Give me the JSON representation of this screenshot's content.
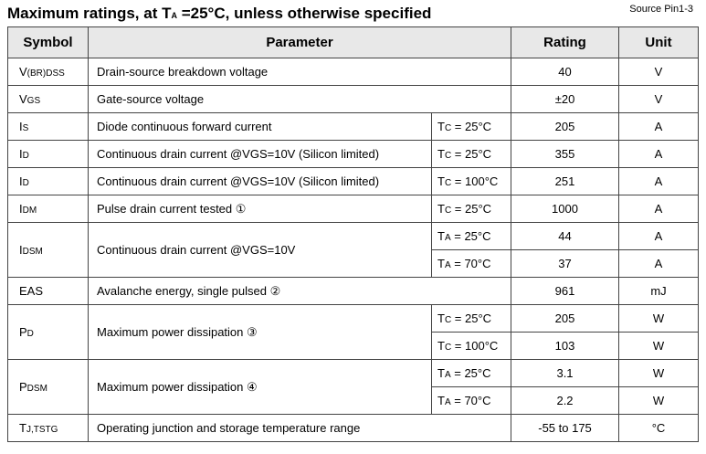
{
  "header": {
    "title_prefix": "Maximum ratings, at T",
    "title_sub": "A",
    "title_suffix": " =25°C, unless otherwise specified",
    "source": "Source Pin1-3"
  },
  "columns": {
    "symbol": "Symbol",
    "parameter": "Parameter",
    "rating": "Rating",
    "unit": "Unit"
  },
  "rows": [
    {
      "sym_main": "V",
      "sym_sub": "(BR)DSS",
      "param": "Drain-source breakdown voltage",
      "rating": "40",
      "unit": "V"
    },
    {
      "sym_main": "V",
      "sym_sub": "GS",
      "param": "Gate-source voltage",
      "rating": "±20",
      "unit": "V"
    },
    {
      "sym_main": "I",
      "sym_sub": "S",
      "param": "Diode continuous forward current",
      "cond_main": "T",
      "cond_sub": "C",
      "cond_rest": " = 25°C",
      "rating": "205",
      "unit": "A"
    },
    {
      "sym_main": "I",
      "sym_sub": "D",
      "param": "Continuous drain current @VGS=10V (Silicon limited)",
      "cond_main": "T",
      "cond_sub": "C",
      "cond_rest": " = 25°C",
      "rating": "355",
      "unit": "A"
    },
    {
      "sym_main": "I",
      "sym_sub": "D",
      "param": "Continuous drain current @VGS=10V (Silicon limited)",
      "cond_main": "T",
      "cond_sub": "C",
      "cond_rest": " = 100°C",
      "rating": "251",
      "unit": "A"
    },
    {
      "sym_main": "I",
      "sym_sub": "DM",
      "param": "Pulse drain current tested ①",
      "cond_main": "T",
      "cond_sub": "C",
      "cond_rest": " = 25°C",
      "rating": "1000",
      "unit": "A"
    },
    {
      "sym_main": "I",
      "sym_sub": "DSM",
      "param": "Continuous drain current @VGS=10V",
      "sub": [
        {
          "cond_main": "T",
          "cond_sub": "A",
          "cond_rest": " = 25°C",
          "rating": "44",
          "unit": "A"
        },
        {
          "cond_main": "T",
          "cond_sub": "A",
          "cond_rest": " = 70°C",
          "rating": "37",
          "unit": "A"
        }
      ]
    },
    {
      "sym_main": "EAS",
      "sym_sub": "",
      "param": "Avalanche energy, single pulsed ②",
      "rating": "961",
      "unit": "mJ"
    },
    {
      "sym_main": "P",
      "sym_sub": "D",
      "param": "Maximum power dissipation ③",
      "sub": [
        {
          "cond_main": "T",
          "cond_sub": "C",
          "cond_rest": " = 25°C",
          "rating": "205",
          "unit": "W"
        },
        {
          "cond_main": "T",
          "cond_sub": "C",
          "cond_rest": " = 100°C",
          "rating": "103",
          "unit": "W"
        }
      ]
    },
    {
      "sym_main": "P",
      "sym_sub": "DSM",
      "param": "Maximum power dissipation ④",
      "sub": [
        {
          "cond_main": "T",
          "cond_sub": "A",
          "cond_rest": " = 25°C",
          "rating": "3.1",
          "unit": "W"
        },
        {
          "cond_main": "T",
          "cond_sub": "A",
          "cond_rest": " = 70°C",
          "rating": "2.2",
          "unit": "W"
        }
      ]
    },
    {
      "sym_main": "T",
      "sym_sub": "J,TSTG",
      "param": "Operating junction and storage temperature range",
      "rating": "-55 to 175",
      "unit": "°C"
    }
  ]
}
